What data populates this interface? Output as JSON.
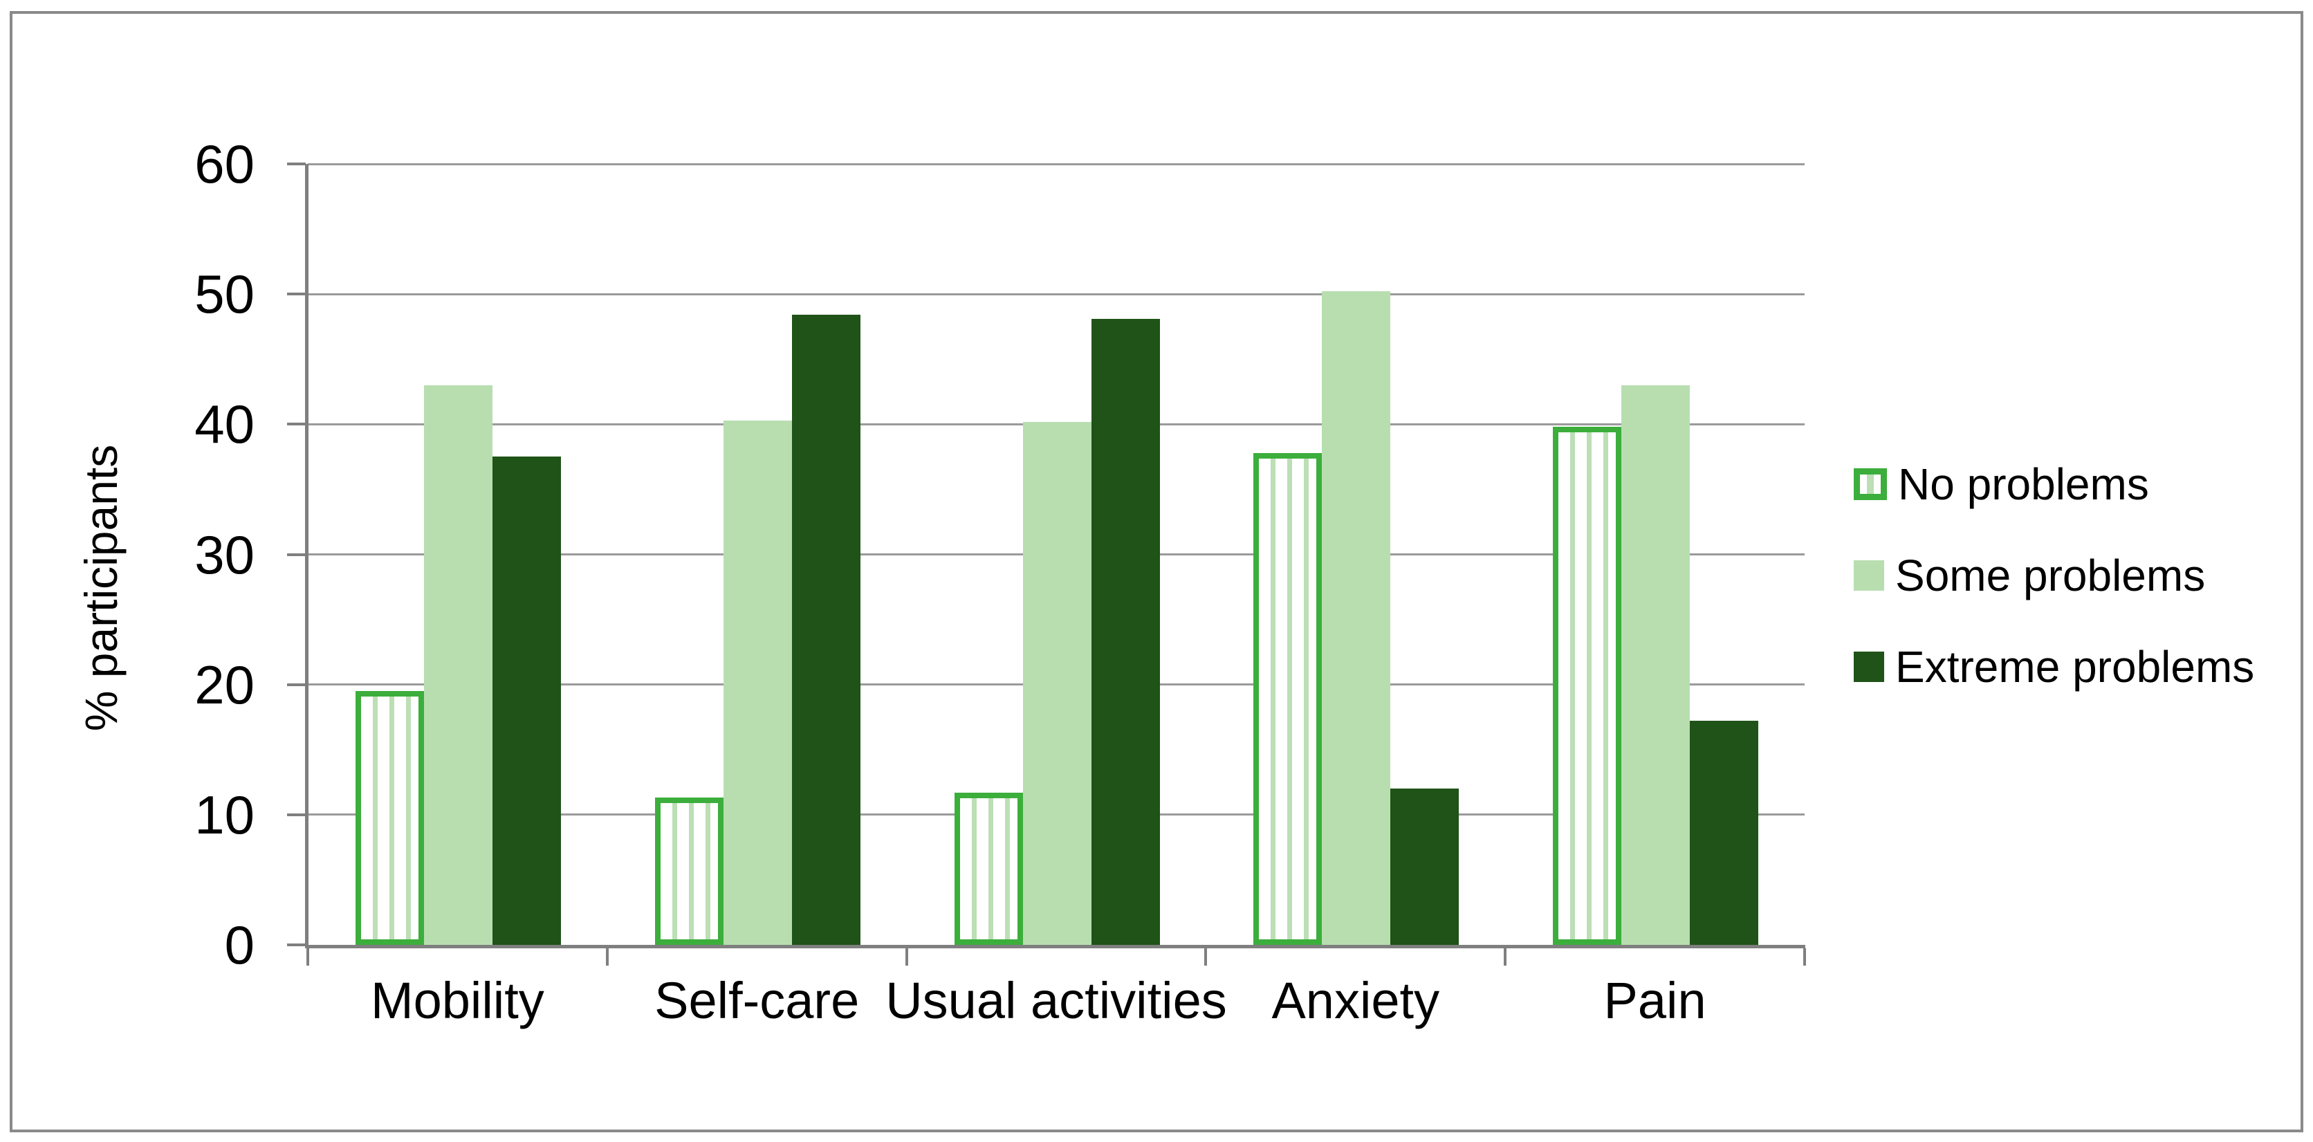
{
  "figure": {
    "frame_border_color": "#8a8a8a",
    "background_color": "#ffffff"
  },
  "chart_data": {
    "type": "bar",
    "title": "",
    "xlabel": "",
    "ylabel": "% participants",
    "categories": [
      "Mobility",
      "Self-care",
      "Usual activities",
      "Anxiety",
      "Pain"
    ],
    "series": [
      {
        "name": "No problems",
        "style": "white-striped-green-border",
        "values": [
          19.5,
          11.3,
          11.7,
          37.8,
          39.8
        ]
      },
      {
        "name": "Some problems",
        "style": "light-green",
        "values": [
          43.0,
          40.3,
          40.2,
          50.2,
          43.0
        ]
      },
      {
        "name": "Extreme problems",
        "style": "dark-green",
        "values": [
          37.5,
          48.4,
          48.1,
          12.0,
          17.2
        ]
      }
    ],
    "ylim": [
      0,
      60
    ],
    "yticks": [
      0,
      10,
      20,
      30,
      40,
      50,
      60
    ],
    "grid": true,
    "legend_position": "right",
    "colors": {
      "no_problems_border": "#3cae3c",
      "no_problems_stripe": "#bcdfb5",
      "some_problems_fill": "#b8deb0",
      "extreme_problems_fill": "#1f5318",
      "gridline": "#9a9a9a",
      "axis": "#7f7f7f",
      "text": "#000000"
    }
  }
}
